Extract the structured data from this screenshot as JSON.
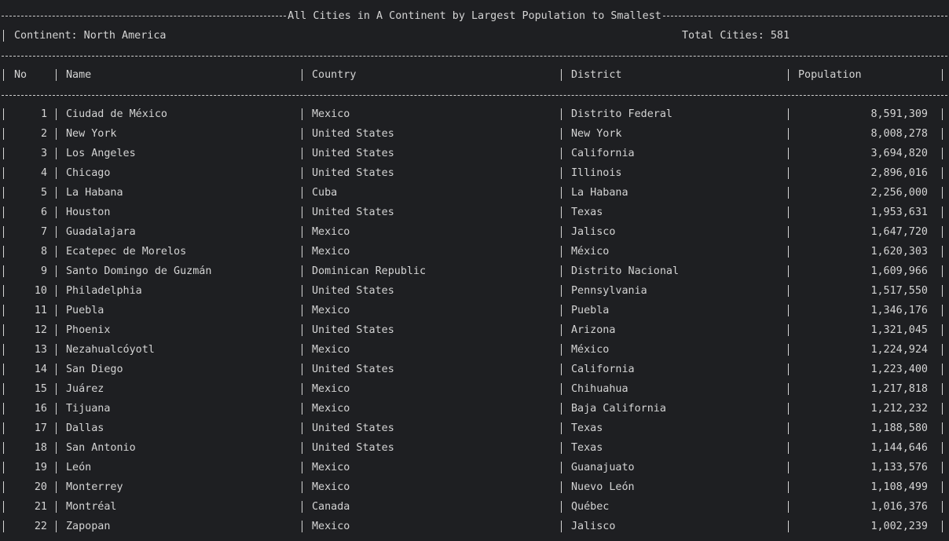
{
  "report": {
    "title": "All Cities in A Continent by Largest Population to Smallest",
    "continent_label": "Continent: North America",
    "total_label": "Total Cities: 581"
  },
  "columns": {
    "no": "No",
    "name": "Name",
    "country": "Country",
    "district": "District",
    "population": "Population"
  },
  "rows": [
    {
      "no": "1",
      "name": "Ciudad de México",
      "country": "Mexico",
      "district": "Distrito Federal",
      "population": "8,591,309"
    },
    {
      "no": "2",
      "name": "New York",
      "country": "United States",
      "district": "New York",
      "population": "8,008,278"
    },
    {
      "no": "3",
      "name": "Los Angeles",
      "country": "United States",
      "district": "California",
      "population": "3,694,820"
    },
    {
      "no": "4",
      "name": "Chicago",
      "country": "United States",
      "district": "Illinois",
      "population": "2,896,016"
    },
    {
      "no": "5",
      "name": "La Habana",
      "country": "Cuba",
      "district": "La Habana",
      "population": "2,256,000"
    },
    {
      "no": "6",
      "name": "Houston",
      "country": "United States",
      "district": "Texas",
      "population": "1,953,631"
    },
    {
      "no": "7",
      "name": "Guadalajara",
      "country": "Mexico",
      "district": "Jalisco",
      "population": "1,647,720"
    },
    {
      "no": "8",
      "name": "Ecatepec de Morelos",
      "country": "Mexico",
      "district": "México",
      "population": "1,620,303"
    },
    {
      "no": "9",
      "name": "Santo Domingo de Guzmán",
      "country": "Dominican Republic",
      "district": "Distrito Nacional",
      "population": "1,609,966"
    },
    {
      "no": "10",
      "name": "Philadelphia",
      "country": "United States",
      "district": "Pennsylvania",
      "population": "1,517,550"
    },
    {
      "no": "11",
      "name": "Puebla",
      "country": "Mexico",
      "district": "Puebla",
      "population": "1,346,176"
    },
    {
      "no": "12",
      "name": "Phoenix",
      "country": "United States",
      "district": "Arizona",
      "population": "1,321,045"
    },
    {
      "no": "13",
      "name": "Nezahualcóyotl",
      "country": "Mexico",
      "district": "México",
      "population": "1,224,924"
    },
    {
      "no": "14",
      "name": "San Diego",
      "country": "United States",
      "district": "California",
      "population": "1,223,400"
    },
    {
      "no": "15",
      "name": "Juárez",
      "country": "Mexico",
      "district": "Chihuahua",
      "population": "1,217,818"
    },
    {
      "no": "16",
      "name": "Tijuana",
      "country": "Mexico",
      "district": "Baja California",
      "population": "1,212,232"
    },
    {
      "no": "17",
      "name": "Dallas",
      "country": "United States",
      "district": "Texas",
      "population": "1,188,580"
    },
    {
      "no": "18",
      "name": "San Antonio",
      "country": "United States",
      "district": "Texas",
      "population": "1,144,646"
    },
    {
      "no": "19",
      "name": "León",
      "country": "Mexico",
      "district": "Guanajuato",
      "population": "1,133,576"
    },
    {
      "no": "20",
      "name": "Monterrey",
      "country": "Mexico",
      "district": "Nuevo León",
      "population": "1,108,499"
    },
    {
      "no": "21",
      "name": "Montréal",
      "country": "Canada",
      "district": "Québec",
      "population": "1,016,376"
    },
    {
      "no": "22",
      "name": "Zapopan",
      "country": "Mexico",
      "district": "Jalisco",
      "population": "1,002,239"
    }
  ]
}
